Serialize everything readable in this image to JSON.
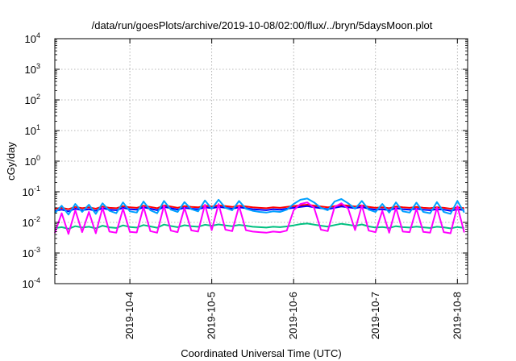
{
  "chart_data": {
    "type": "line",
    "title": "/data/run/goesPlots/archive/2019-10-08/02:00/flux/../bryn/5daysMoon.plot",
    "xlabel": "Coordinated Universal Time (UTC)",
    "ylabel": "cGy/day",
    "yscale": "log",
    "ylim": [
      0.0001,
      10000
    ],
    "xlim": [
      "2019-10-03T02:00",
      "2019-10-08T03:00"
    ],
    "x_ticks": [
      "2019-10-4",
      "2019-10-5",
      "2019-10-6",
      "2019-10-7",
      "2019-10-8"
    ],
    "y_ticks": [
      {
        "base": "10",
        "exp": "-4"
      },
      {
        "base": "10",
        "exp": "-3"
      },
      {
        "base": "10",
        "exp": "-2"
      },
      {
        "base": "10",
        "exp": "-1"
      },
      {
        "base": "10",
        "exp": "0"
      },
      {
        "base": "10",
        "exp": "1"
      },
      {
        "base": "10",
        "exp": "2"
      },
      {
        "base": "10",
        "exp": "3"
      },
      {
        "base": "10",
        "exp": "4"
      }
    ],
    "grid": true,
    "x": [
      "2019-10-03T02:00",
      "2019-10-03T04:00",
      "2019-10-03T06:00",
      "2019-10-03T08:00",
      "2019-10-03T10:00",
      "2019-10-03T12:00",
      "2019-10-03T14:00",
      "2019-10-03T16:00",
      "2019-10-03T18:00",
      "2019-10-03T20:00",
      "2019-10-03T22:00",
      "2019-10-04T00:00",
      "2019-10-04T02:00",
      "2019-10-04T04:00",
      "2019-10-04T06:00",
      "2019-10-04T08:00",
      "2019-10-04T10:00",
      "2019-10-04T12:00",
      "2019-10-04T14:00",
      "2019-10-04T16:00",
      "2019-10-04T18:00",
      "2019-10-04T20:00",
      "2019-10-04T22:00",
      "2019-10-05T00:00",
      "2019-10-05T02:00",
      "2019-10-05T04:00",
      "2019-10-05T06:00",
      "2019-10-05T08:00",
      "2019-10-05T10:00",
      "2019-10-05T12:00",
      "2019-10-05T14:00",
      "2019-10-05T16:00",
      "2019-10-05T18:00",
      "2019-10-05T20:00",
      "2019-10-05T22:00",
      "2019-10-06T00:00",
      "2019-10-06T02:00",
      "2019-10-06T04:00",
      "2019-10-06T06:00",
      "2019-10-06T08:00",
      "2019-10-06T10:00",
      "2019-10-06T12:00",
      "2019-10-06T14:00",
      "2019-10-06T16:00",
      "2019-10-06T18:00",
      "2019-10-06T20:00",
      "2019-10-06T22:00",
      "2019-10-07T00:00",
      "2019-10-07T02:00",
      "2019-10-07T04:00",
      "2019-10-07T06:00",
      "2019-10-07T08:00",
      "2019-10-07T10:00",
      "2019-10-07T12:00",
      "2019-10-07T14:00",
      "2019-10-07T16:00",
      "2019-10-07T18:00",
      "2019-10-07T20:00",
      "2019-10-07T22:00",
      "2019-10-08T00:00",
      "2019-10-08T02:00"
    ],
    "series": [
      {
        "color": "#ff0000",
        "values": [
          0.028,
          0.03,
          0.027,
          0.032,
          0.029,
          0.031,
          0.028,
          0.033,
          0.03,
          0.029,
          0.034,
          0.031,
          0.03,
          0.035,
          0.032,
          0.029,
          0.036,
          0.033,
          0.03,
          0.034,
          0.032,
          0.031,
          0.035,
          0.033,
          0.036,
          0.034,
          0.032,
          0.035,
          0.033,
          0.031,
          0.03,
          0.029,
          0.031,
          0.03,
          0.032,
          0.034,
          0.036,
          0.038,
          0.035,
          0.033,
          0.031,
          0.034,
          0.037,
          0.035,
          0.033,
          0.036,
          0.032,
          0.03,
          0.031,
          0.029,
          0.033,
          0.031,
          0.03,
          0.032,
          0.03,
          0.029,
          0.031,
          0.03,
          0.028,
          0.031,
          0.029
        ]
      },
      {
        "color": "#0000ff",
        "values": [
          0.024,
          0.026,
          0.023,
          0.028,
          0.025,
          0.027,
          0.024,
          0.029,
          0.026,
          0.025,
          0.03,
          0.027,
          0.026,
          0.031,
          0.028,
          0.025,
          0.032,
          0.029,
          0.026,
          0.03,
          0.028,
          0.027,
          0.031,
          0.029,
          0.032,
          0.03,
          0.028,
          0.031,
          0.029,
          0.027,
          0.026,
          0.025,
          0.027,
          0.026,
          0.028,
          0.03,
          0.032,
          0.034,
          0.031,
          0.029,
          0.027,
          0.03,
          0.033,
          0.031,
          0.029,
          0.032,
          0.028,
          0.026,
          0.027,
          0.025,
          0.029,
          0.027,
          0.026,
          0.028,
          0.026,
          0.025,
          0.027,
          0.026,
          0.024,
          0.027,
          0.025
        ]
      },
      {
        "color": "#00a0ff",
        "values": [
          0.02,
          0.035,
          0.018,
          0.04,
          0.022,
          0.038,
          0.019,
          0.042,
          0.024,
          0.02,
          0.045,
          0.023,
          0.021,
          0.048,
          0.025,
          0.02,
          0.05,
          0.026,
          0.022,
          0.046,
          0.027,
          0.023,
          0.052,
          0.028,
          0.055,
          0.03,
          0.025,
          0.05,
          0.028,
          0.024,
          0.022,
          0.021,
          0.023,
          0.022,
          0.026,
          0.04,
          0.055,
          0.06,
          0.045,
          0.03,
          0.025,
          0.048,
          0.058,
          0.042,
          0.028,
          0.05,
          0.026,
          0.022,
          0.04,
          0.021,
          0.045,
          0.023,
          0.021,
          0.044,
          0.022,
          0.02,
          0.046,
          0.022,
          0.019,
          0.05,
          0.021
        ]
      },
      {
        "color": "#00c080",
        "values": [
          0.0065,
          0.007,
          0.0062,
          0.0075,
          0.0068,
          0.0072,
          0.0064,
          0.0078,
          0.0069,
          0.0066,
          0.008,
          0.0071,
          0.0068,
          0.0082,
          0.0074,
          0.0067,
          0.0085,
          0.0076,
          0.007,
          0.0081,
          0.0075,
          0.0072,
          0.0084,
          0.0078,
          0.0086,
          0.008,
          0.0075,
          0.0083,
          0.0078,
          0.0072,
          0.007,
          0.0068,
          0.0072,
          0.007,
          0.0074,
          0.008,
          0.0088,
          0.0092,
          0.0085,
          0.0078,
          0.0073,
          0.0082,
          0.009,
          0.0084,
          0.0077,
          0.0086,
          0.0074,
          0.0068,
          0.0071,
          0.0066,
          0.0075,
          0.007,
          0.0068,
          0.0073,
          0.0069,
          0.0066,
          0.0072,
          0.0069,
          0.0064,
          0.0071,
          0.0066
        ]
      },
      {
        "color": "#ff00ff",
        "values": [
          0.0045,
          0.02,
          0.0042,
          0.025,
          0.0048,
          0.022,
          0.0044,
          0.03,
          0.005,
          0.0046,
          0.028,
          0.0049,
          0.0047,
          0.032,
          0.0052,
          0.0046,
          0.035,
          0.0054,
          0.0048,
          0.03,
          0.0055,
          0.005,
          0.038,
          0.0056,
          0.04,
          0.0058,
          0.0052,
          0.034,
          0.0056,
          0.005,
          0.0048,
          0.0046,
          0.005,
          0.0048,
          0.0054,
          0.025,
          0.04,
          0.045,
          0.03,
          0.0058,
          0.0052,
          0.032,
          0.042,
          0.028,
          0.0056,
          0.036,
          0.0054,
          0.0048,
          0.024,
          0.0046,
          0.03,
          0.005,
          0.0048,
          0.028,
          0.0049,
          0.0046,
          0.03,
          0.0048,
          0.0044,
          0.034,
          0.0047
        ]
      }
    ]
  }
}
